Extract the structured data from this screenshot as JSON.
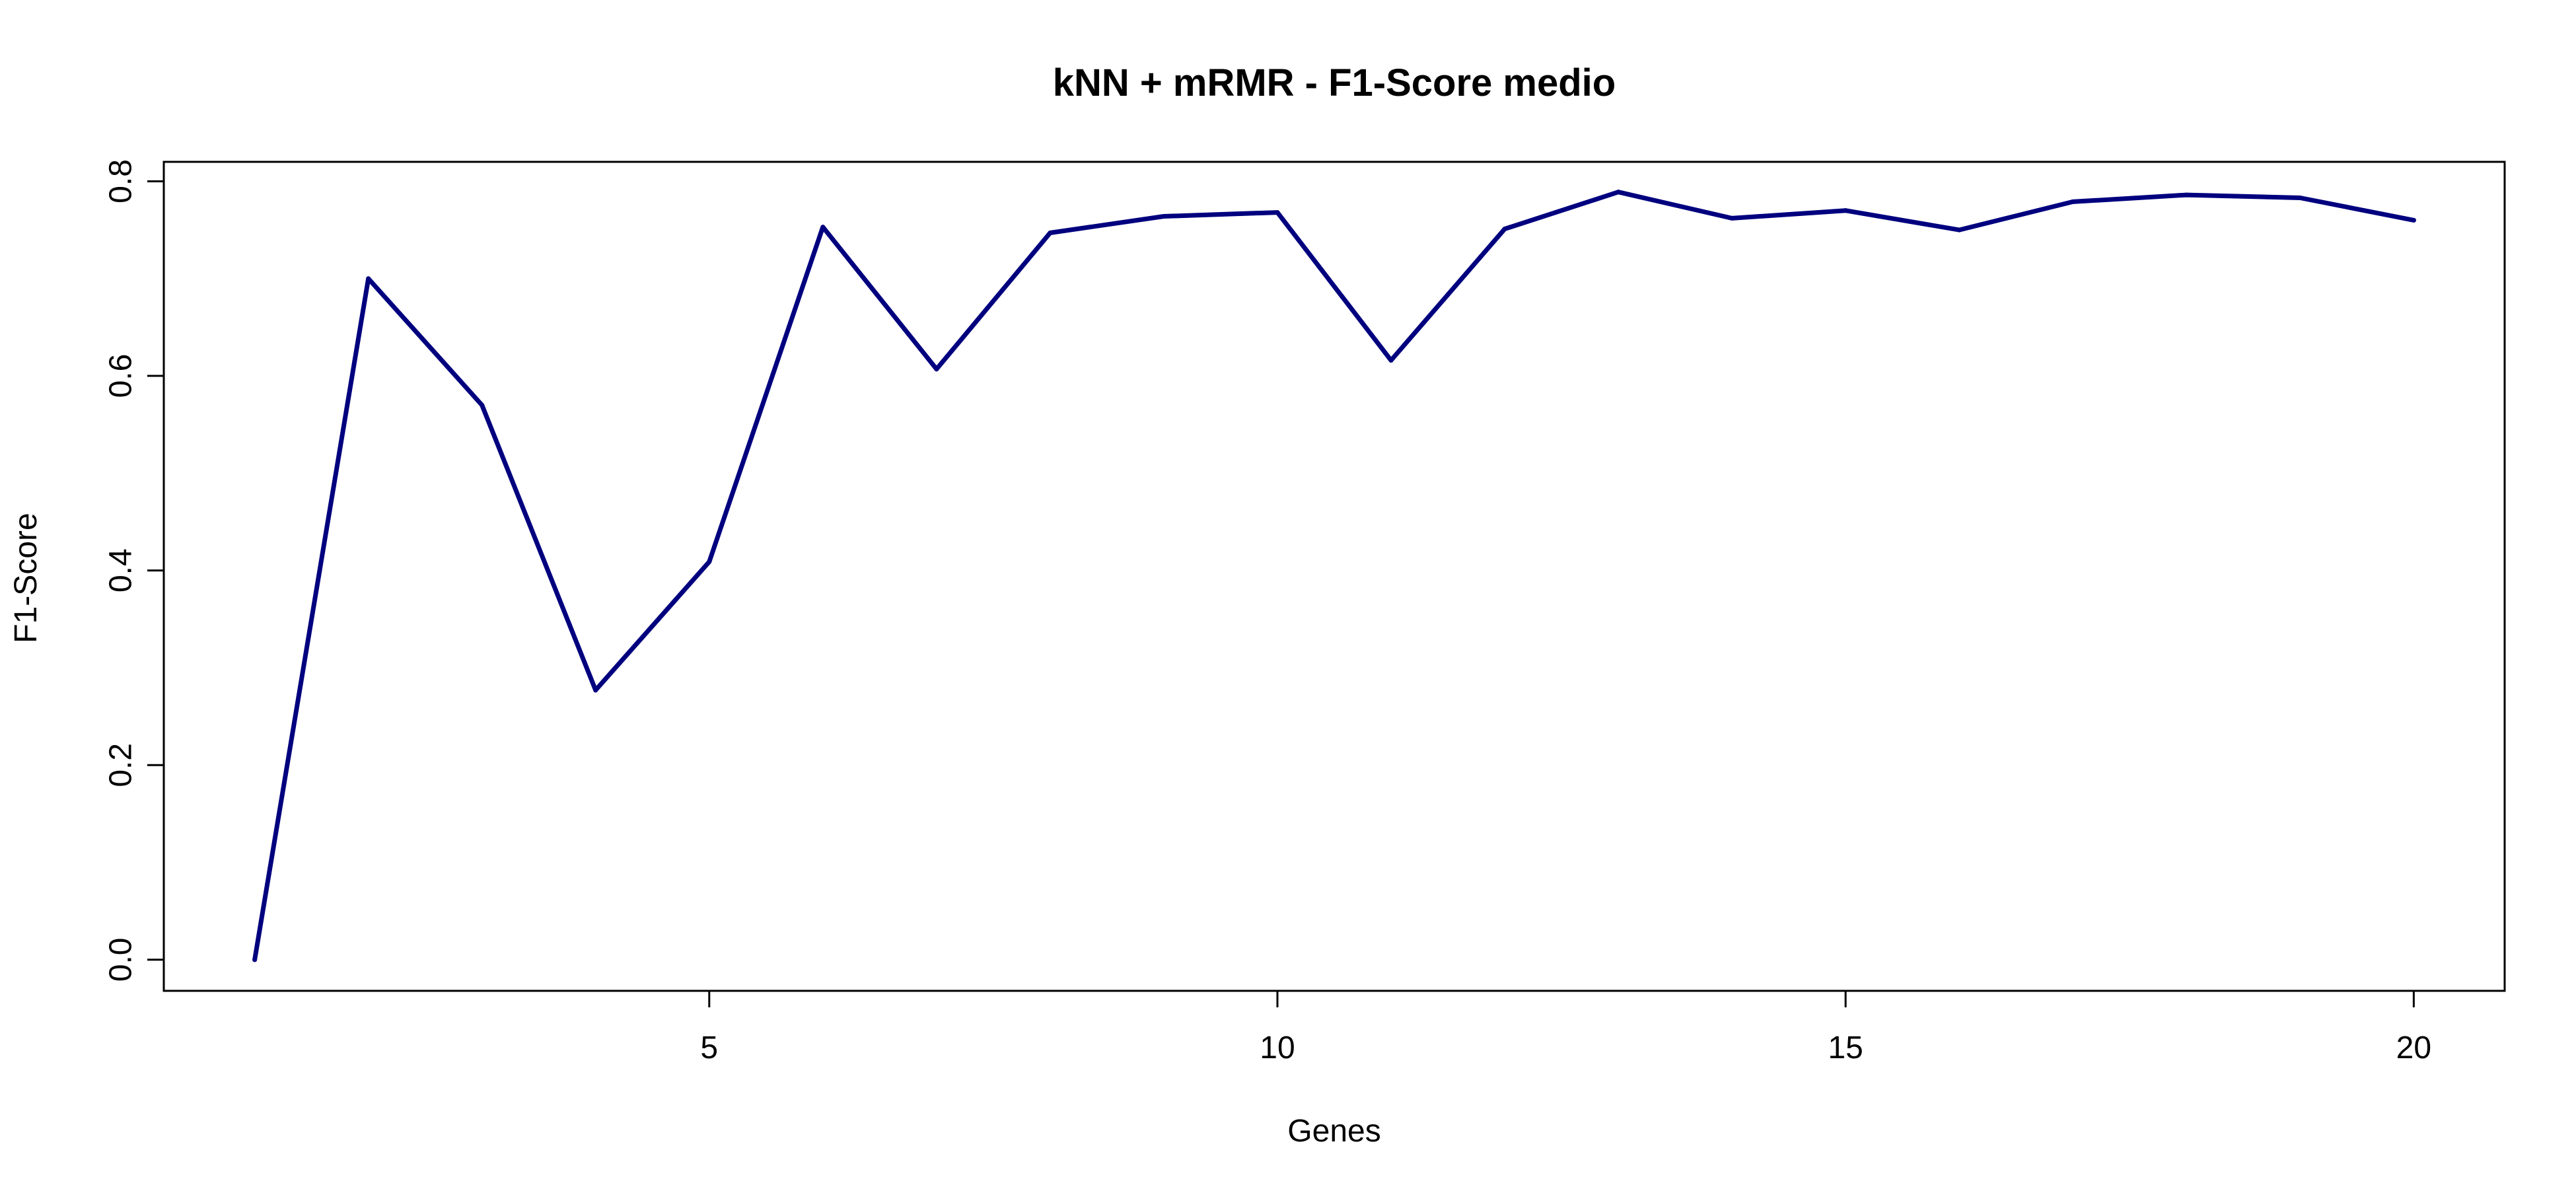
{
  "chart_data": {
    "type": "line",
    "title": "kNN + mRMR - F1-Score medio",
    "xlabel": "Genes",
    "ylabel": "F1-Score",
    "x": [
      1,
      2,
      3,
      4,
      5,
      6,
      7,
      8,
      9,
      10,
      11,
      12,
      13,
      14,
      15,
      16,
      17,
      18,
      19,
      20
    ],
    "series": [
      {
        "values": [
          0.0,
          0.7,
          0.57,
          0.277,
          0.409,
          0.753,
          0.607,
          0.747,
          0.764,
          0.768,
          0.616,
          0.751,
          0.789,
          0.762,
          0.77,
          0.75,
          0.779,
          0.786,
          0.783,
          0.76
        ],
        "color": "#00007F"
      }
    ],
    "xlim": [
      0.2,
      20.8
    ],
    "ylim": [
      -0.032,
      0.82
    ],
    "xticks": [
      5,
      10,
      15,
      20
    ],
    "xtick_labels": [
      "5",
      "10",
      "15",
      "20"
    ],
    "yticks": [
      0.0,
      0.2,
      0.4,
      0.6,
      0.8
    ],
    "ytick_labels": [
      "0.0",
      "0.2",
      "0.4",
      "0.6",
      "0.8"
    ],
    "grid": false,
    "legend": "none"
  }
}
